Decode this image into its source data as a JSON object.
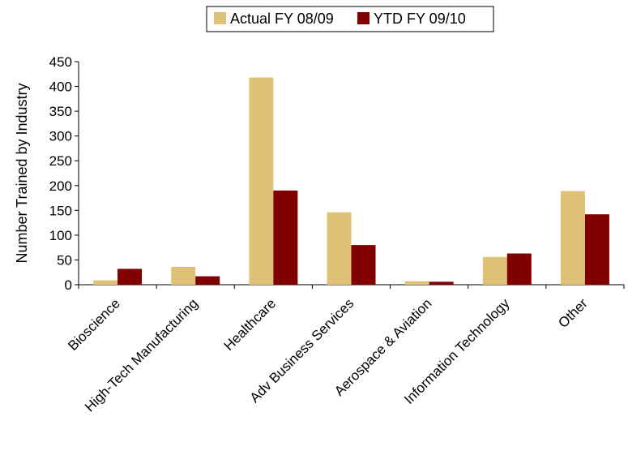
{
  "chart_data": {
    "type": "bar",
    "title": "",
    "xlabel": "",
    "ylabel": "Number Trained by Industry",
    "ylim": [
      0,
      450
    ],
    "yticks": [
      0,
      50,
      100,
      150,
      200,
      250,
      300,
      350,
      400,
      450
    ],
    "categories": [
      "Bioscience",
      "High-Tech Manufacturing",
      "Healthcare",
      "Adv Business Services",
      "Aerospace & Aviation",
      "Information Technology",
      "Other"
    ],
    "series": [
      {
        "name": "Actual FY 08/09",
        "color": "#E0C276",
        "values": [
          9,
          36,
          418,
          146,
          7,
          56,
          189
        ]
      },
      {
        "name": "YTD FY 09/10",
        "color": "#800000",
        "values": [
          32,
          17,
          190,
          80,
          6,
          63,
          142
        ]
      }
    ],
    "grid": false,
    "legend_position": "top"
  }
}
